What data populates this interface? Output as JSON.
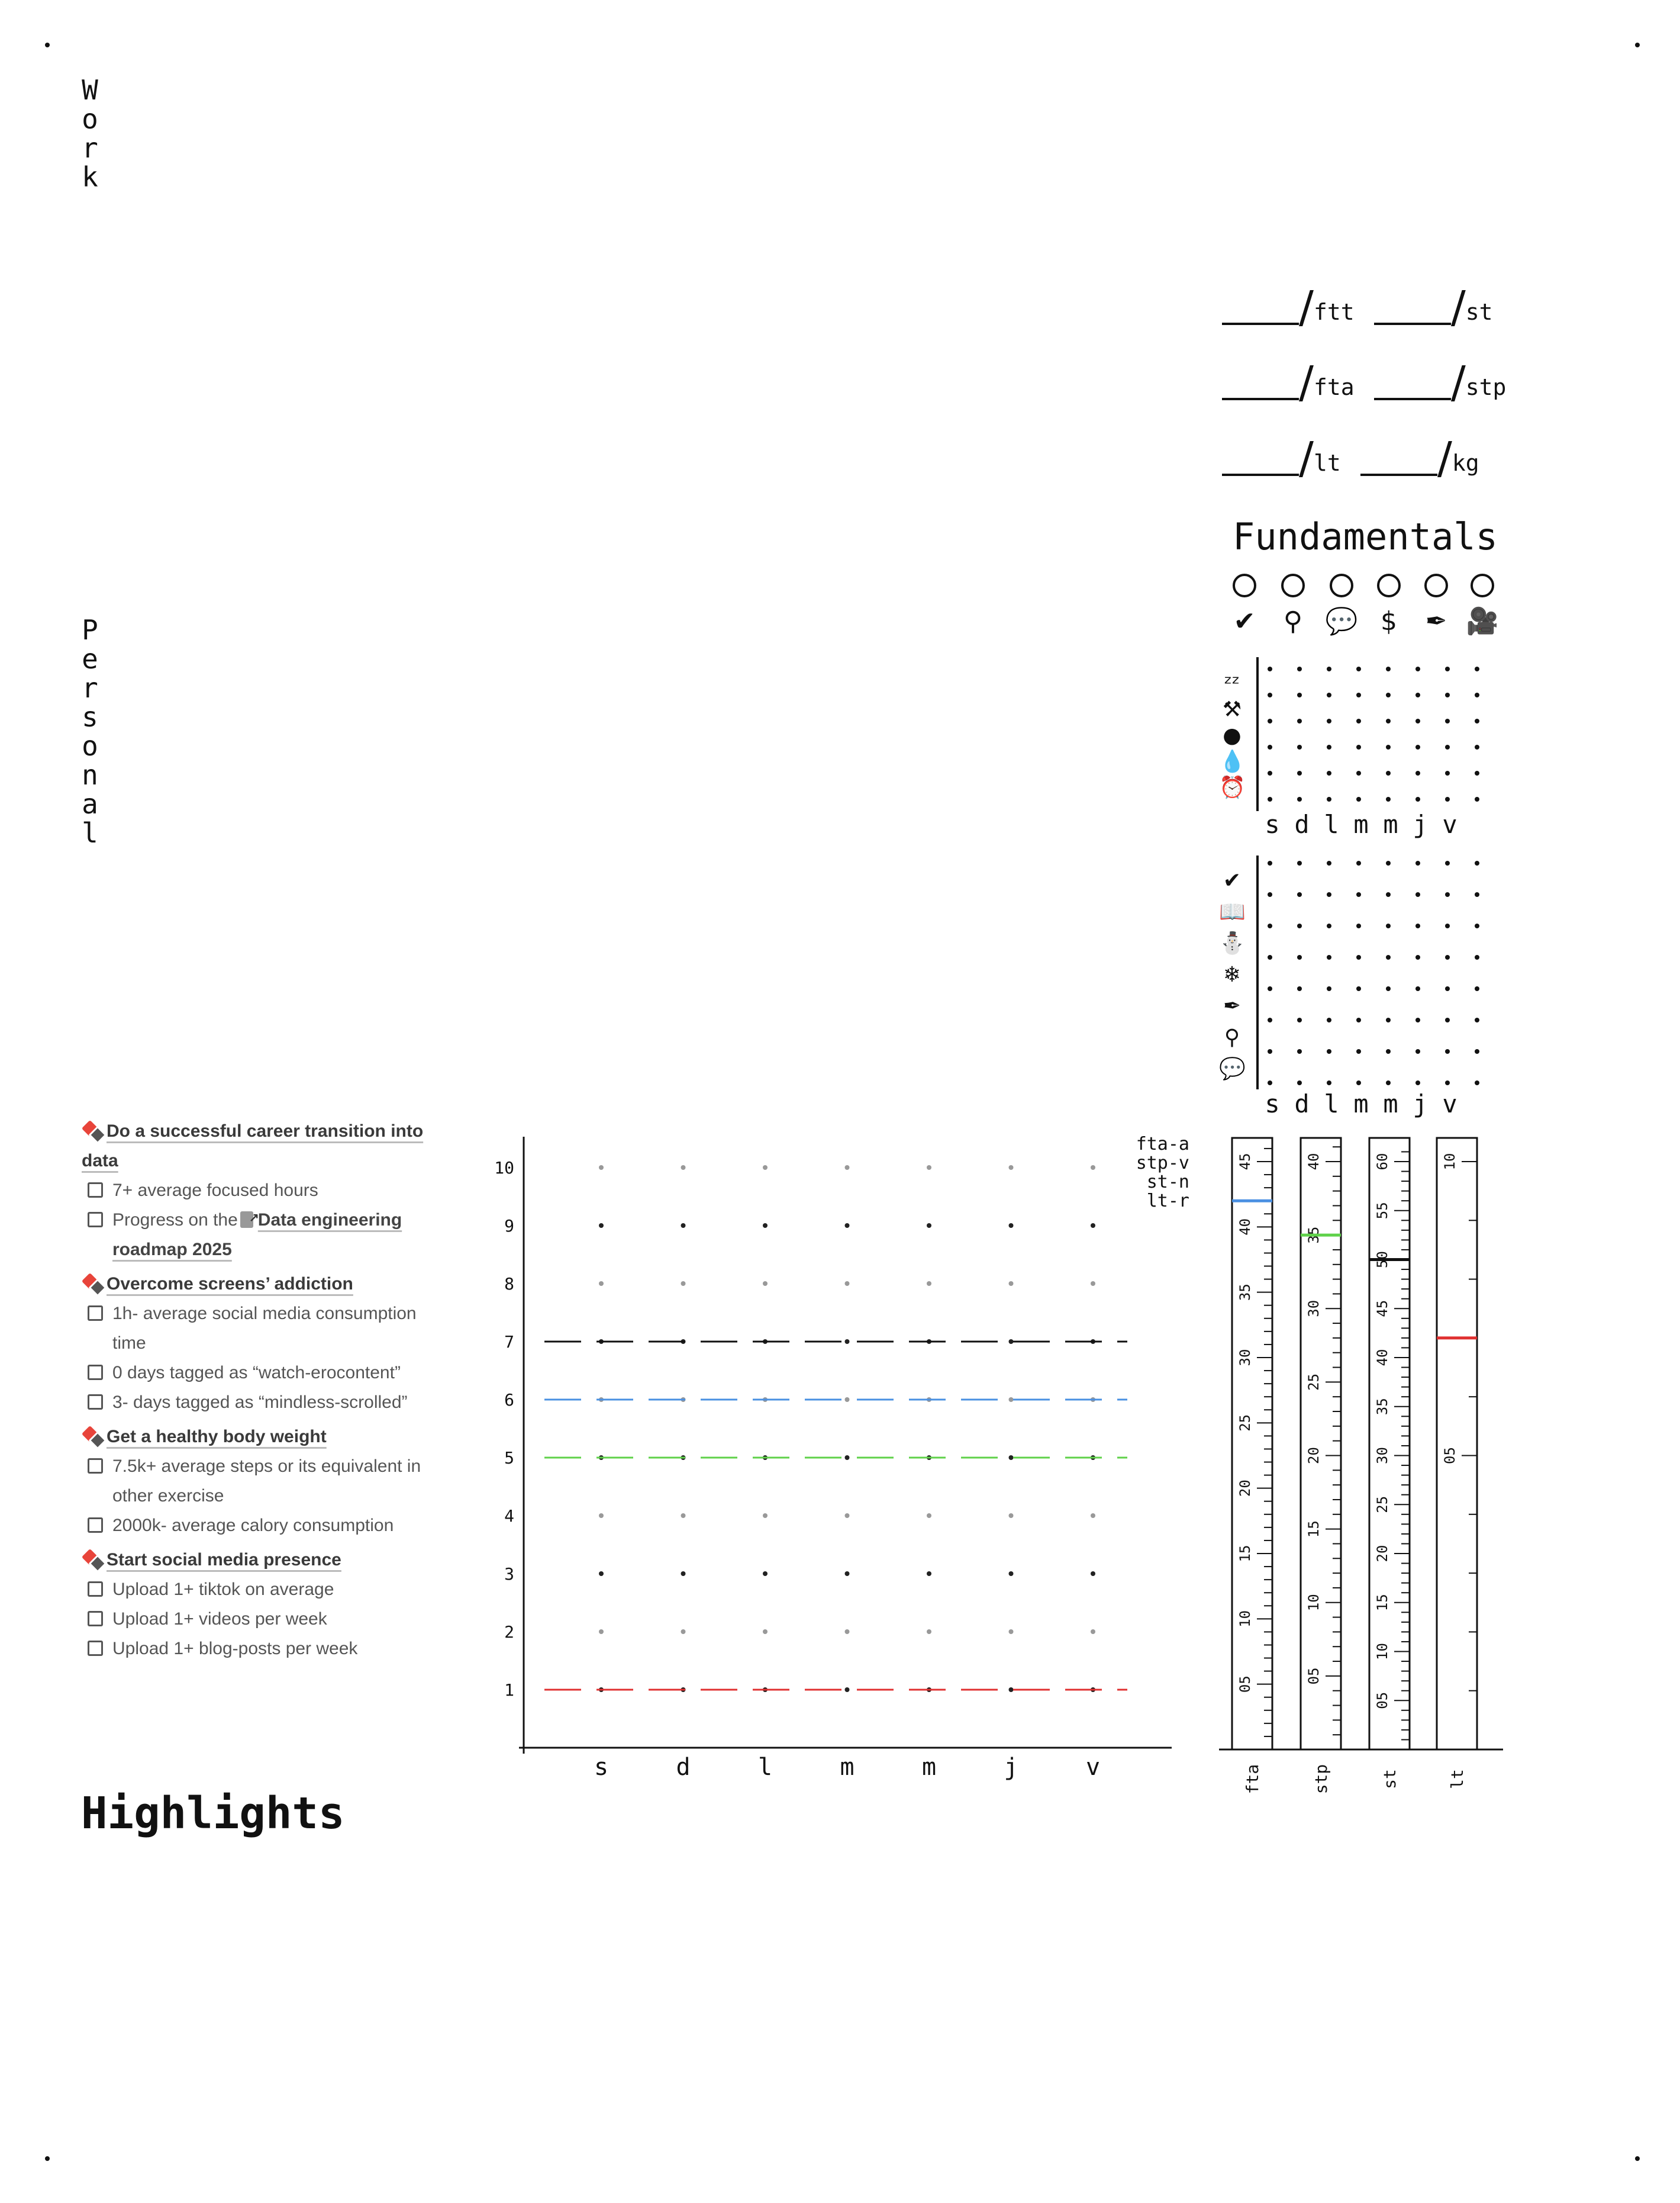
{
  "section_labels": {
    "work": "Work",
    "personal": "Personal"
  },
  "measurements": [
    {
      "unit": "ftt"
    },
    {
      "unit": "st"
    },
    {
      "unit": "fta"
    },
    {
      "unit": "stp"
    },
    {
      "unit": "lt"
    },
    {
      "unit": "kg"
    }
  ],
  "fundamentals": {
    "title": "Fundamentals",
    "icons": [
      "badge-check-icon",
      "map-pin-icon",
      "chat-icon",
      "dollar-icon",
      "pen-nib-icon",
      "video-camera-icon"
    ],
    "grid1_icons": [
      "sleep-icon",
      "dumbbell-icon",
      "apple-icon",
      "water-drop-icon",
      "alarm-clock-icon"
    ],
    "grid2_icons": [
      "badge-check-icon",
      "book-icon",
      "meditation-icon",
      "snowflake-icon",
      "pen-nib-icon",
      "shower-icon",
      "chat-icon"
    ],
    "days": [
      "s",
      "d",
      "l",
      "m",
      "m",
      "j",
      "v"
    ]
  },
  "goals": [
    {
      "title": "Do a successful career transition into data",
      "tasks": [
        {
          "text": "7+ average focused hours"
        },
        {
          "prefix": "Progress on the",
          "link": "Data engineering roadmap 2025"
        }
      ]
    },
    {
      "title": "Overcome screens’ addiction",
      "tasks": [
        {
          "text": "1h- average social media consumption time"
        },
        {
          "text": "0 days tagged as “watch-erocontent”"
        },
        {
          "text": "3- days tagged as “mindless-scrolled”"
        }
      ]
    },
    {
      "title": "Get a healthy body weight",
      "tasks": [
        {
          "text": "7.5k+ average steps or its equivalent in other exercise"
        },
        {
          "text": "2000k- average calory consumption"
        }
      ]
    },
    {
      "title": "Start social media presence",
      "tasks": [
        {
          "text": "Upload 1+ tiktok on average"
        },
        {
          "text": "Upload 1+ videos per week"
        },
        {
          "text": "Upload 1+ blog-posts per week"
        }
      ]
    }
  ],
  "highlights": {
    "title": "Highlights"
  },
  "chart_data": [
    {
      "type": "line",
      "categories": [
        "s",
        "d",
        "l",
        "m",
        "m",
        "j",
        "v"
      ],
      "ylim": [
        0,
        10
      ],
      "yticks": [
        1,
        2,
        3,
        4,
        5,
        6,
        7,
        8,
        9,
        10
      ],
      "legend": [
        "fta-a",
        "stp-v",
        "st-n",
        "lt-r"
      ],
      "legend_position": "top-right",
      "reference_lines": [
        {
          "y": 7,
          "color": "#111111"
        },
        {
          "y": 6,
          "color": "#4a90e2"
        },
        {
          "y": 5,
          "color": "#5fd14a"
        },
        {
          "y": 1,
          "color": "#e03030"
        }
      ]
    },
    {
      "type": "bar",
      "gauges": [
        {
          "label": "fta",
          "ticks": [
            "05",
            "10",
            "15",
            "20",
            "25",
            "30",
            "35",
            "40",
            "45"
          ],
          "marker_value": 42,
          "marker_color": "#4a90e2"
        },
        {
          "label": "stp",
          "ticks": [
            "05",
            "10",
            "15",
            "20",
            "25",
            "30",
            "35",
            "40"
          ],
          "marker_value": 35,
          "marker_color": "#5fd14a"
        },
        {
          "label": "st",
          "ticks": [
            "05",
            "10",
            "15",
            "20",
            "25",
            "30",
            "35",
            "40",
            "45",
            "50",
            "55",
            "60"
          ],
          "marker_value": 50,
          "marker_color": "#111111"
        },
        {
          "label": "lt",
          "ticks": [
            "05",
            "10"
          ],
          "marker_value": 7,
          "marker_color": "#e03030"
        }
      ]
    }
  ]
}
